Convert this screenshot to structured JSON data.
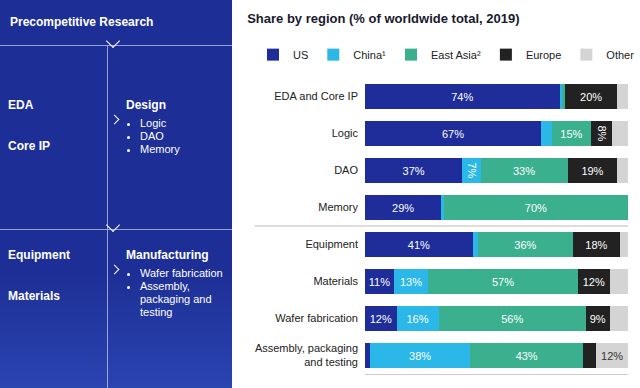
{
  "diagram": {
    "top": "Precompetitive Research",
    "rows": [
      {
        "left": [
          "EDA",
          "Core IP"
        ],
        "right": {
          "title": "Design",
          "items": [
            "Logic",
            "DAO",
            "Memory"
          ]
        }
      },
      {
        "left": [
          "Equipment",
          "Materials"
        ],
        "right": {
          "title": "Manufacturing",
          "items": [
            "Wafer fabrication",
            "Assembly, packaging and testing"
          ]
        }
      }
    ]
  },
  "chart_data": {
    "type": "bar",
    "orientation": "horizontal",
    "stacked": true,
    "title": "Share by region (% of worldwide total, 2019)",
    "categories": [
      "EDA and Core IP",
      "Logic",
      "DAO",
      "Memory",
      "Equipment",
      "Materials",
      "Wafer fabrication",
      "Assembly, packaging and testing"
    ],
    "series": [
      {
        "name": "US",
        "color": "#1e2d9a",
        "values": [
          74,
          67,
          37,
          29,
          41,
          11,
          12,
          2
        ],
        "value_labels": [
          "74%",
          "67%",
          "37%",
          "29%",
          "41%",
          "11%",
          "12%",
          null
        ]
      },
      {
        "name": "China¹",
        "color": "#2bb7e8",
        "values": [
          1,
          4,
          7,
          1,
          2,
          13,
          16,
          38
        ],
        "value_labels": [
          null,
          null,
          "7%",
          null,
          null,
          "13%",
          "16%",
          "38%"
        ]
      },
      {
        "name": "East Asia²",
        "color": "#3bb08f",
        "values": [
          1,
          15,
          33,
          70,
          36,
          57,
          56,
          43
        ],
        "value_labels": [
          null,
          "15%",
          "33%",
          "70%",
          "36%",
          "57%",
          "56%",
          "43%"
        ]
      },
      {
        "name": "Europe",
        "color": "#222222",
        "values": [
          20,
          8,
          19,
          0,
          18,
          12,
          9,
          5
        ],
        "value_labels": [
          "20%",
          "8%",
          "19%",
          null,
          "18%",
          "12%",
          "9%",
          null
        ]
      },
      {
        "name": "Other",
        "color": "#d4d4d4",
        "values": [
          4,
          6,
          4,
          0,
          3,
          7,
          7,
          12
        ],
        "value_labels": [
          null,
          null,
          null,
          null,
          null,
          null,
          null,
          "12%"
        ]
      }
    ],
    "xlim": [
      0,
      100
    ],
    "tick_labels": false,
    "grid": false,
    "legend": "top"
  }
}
